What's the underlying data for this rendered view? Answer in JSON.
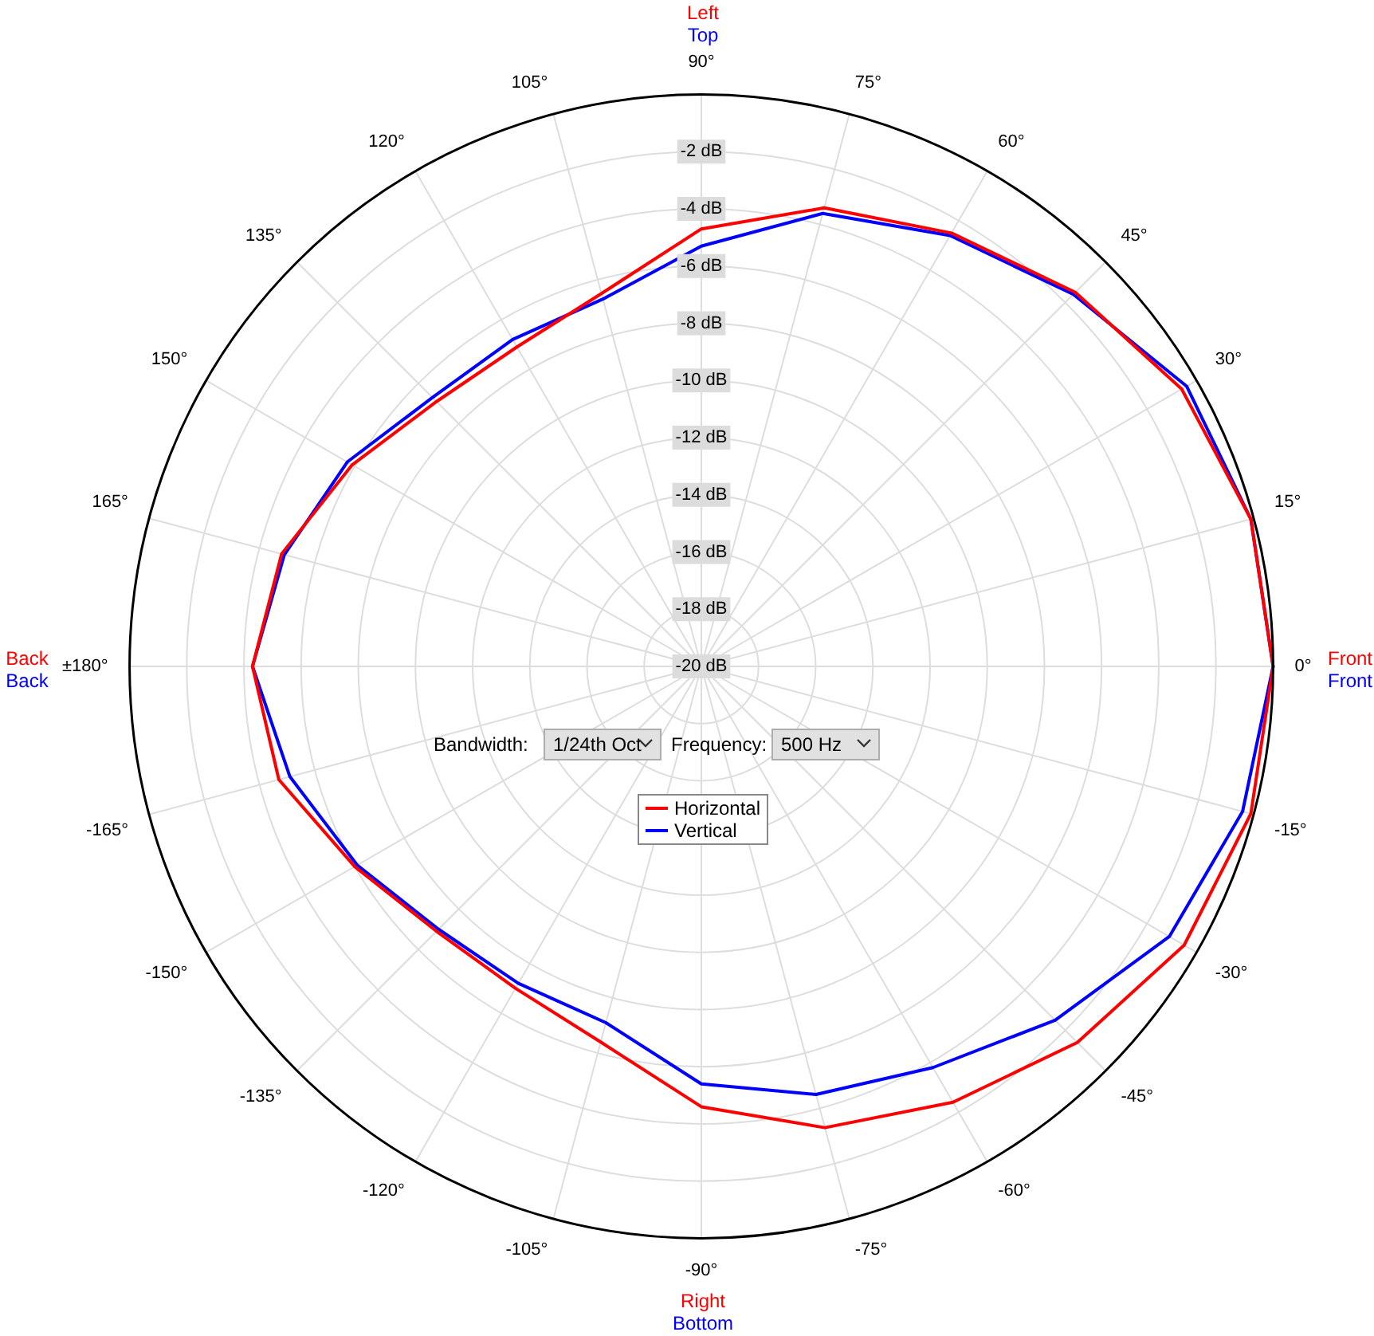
{
  "chart_data": {
    "type": "radar",
    "categories": [
      "90°",
      "75°",
      "60°",
      "45°",
      "30°",
      "15°",
      "0°",
      "-15°",
      "-30°",
      "-45°",
      "-60°",
      "-75°",
      "-90°",
      "-105°",
      "-120°",
      "-135°",
      "-150°",
      "-165°",
      "±180°",
      "165°",
      "150°",
      "135°",
      "120°",
      "105°"
    ],
    "series": [
      {
        "name": "Horizontal",
        "color": "#ff0000",
        "values": [
          -4.7,
          -3.4,
          -2.5,
          -1.5,
          -0.6,
          -0.1,
          0,
          -0.1,
          -0.5,
          -1.4,
          -2.4,
          -3.3,
          -4.6,
          -6.4,
          -7.0,
          -6.9,
          -6.0,
          -4.7,
          -4.3,
          -4.8,
          -5.9,
          -6.9,
          -7.1,
          -6.5
        ]
      },
      {
        "name": "Vertical",
        "color": "#0000ff",
        "values": [
          -5.3,
          -3.6,
          -2.6,
          -1.6,
          -0.4,
          -0.1,
          0,
          -0.4,
          -1.1,
          -2.5,
          -3.8,
          -4.5,
          -5.4,
          -7.1,
          -7.2,
          -7.0,
          -6.1,
          -5.1,
          -4.3,
          -4.9,
          -5.7,
          -6.7,
          -6.8,
          -6.7
        ]
      }
    ],
    "ylim": [
      -20,
      0
    ],
    "yticks": [
      {
        "value": -20,
        "label": "-20 dB"
      },
      {
        "value": -18,
        "label": "-18 dB"
      },
      {
        "value": -16,
        "label": "-16 dB"
      },
      {
        "value": -14,
        "label": "-14 dB"
      },
      {
        "value": -12,
        "label": "-12 dB"
      },
      {
        "value": -10,
        "label": "-10 dB"
      },
      {
        "value": -8,
        "label": "-8 dB"
      },
      {
        "value": -6,
        "label": "-6 dB"
      },
      {
        "value": -4,
        "label": "-4 dB"
      },
      {
        "value": -2,
        "label": "-2 dB"
      }
    ],
    "grid": true,
    "legend": "center",
    "annotations": [
      "Left",
      "Top",
      "Front",
      "Front",
      "Back",
      "Back",
      "Right",
      "Bottom",
      "Bandwidth:",
      "1/24th Oct",
      "Frequency:",
      "500 Hz"
    ]
  }
}
